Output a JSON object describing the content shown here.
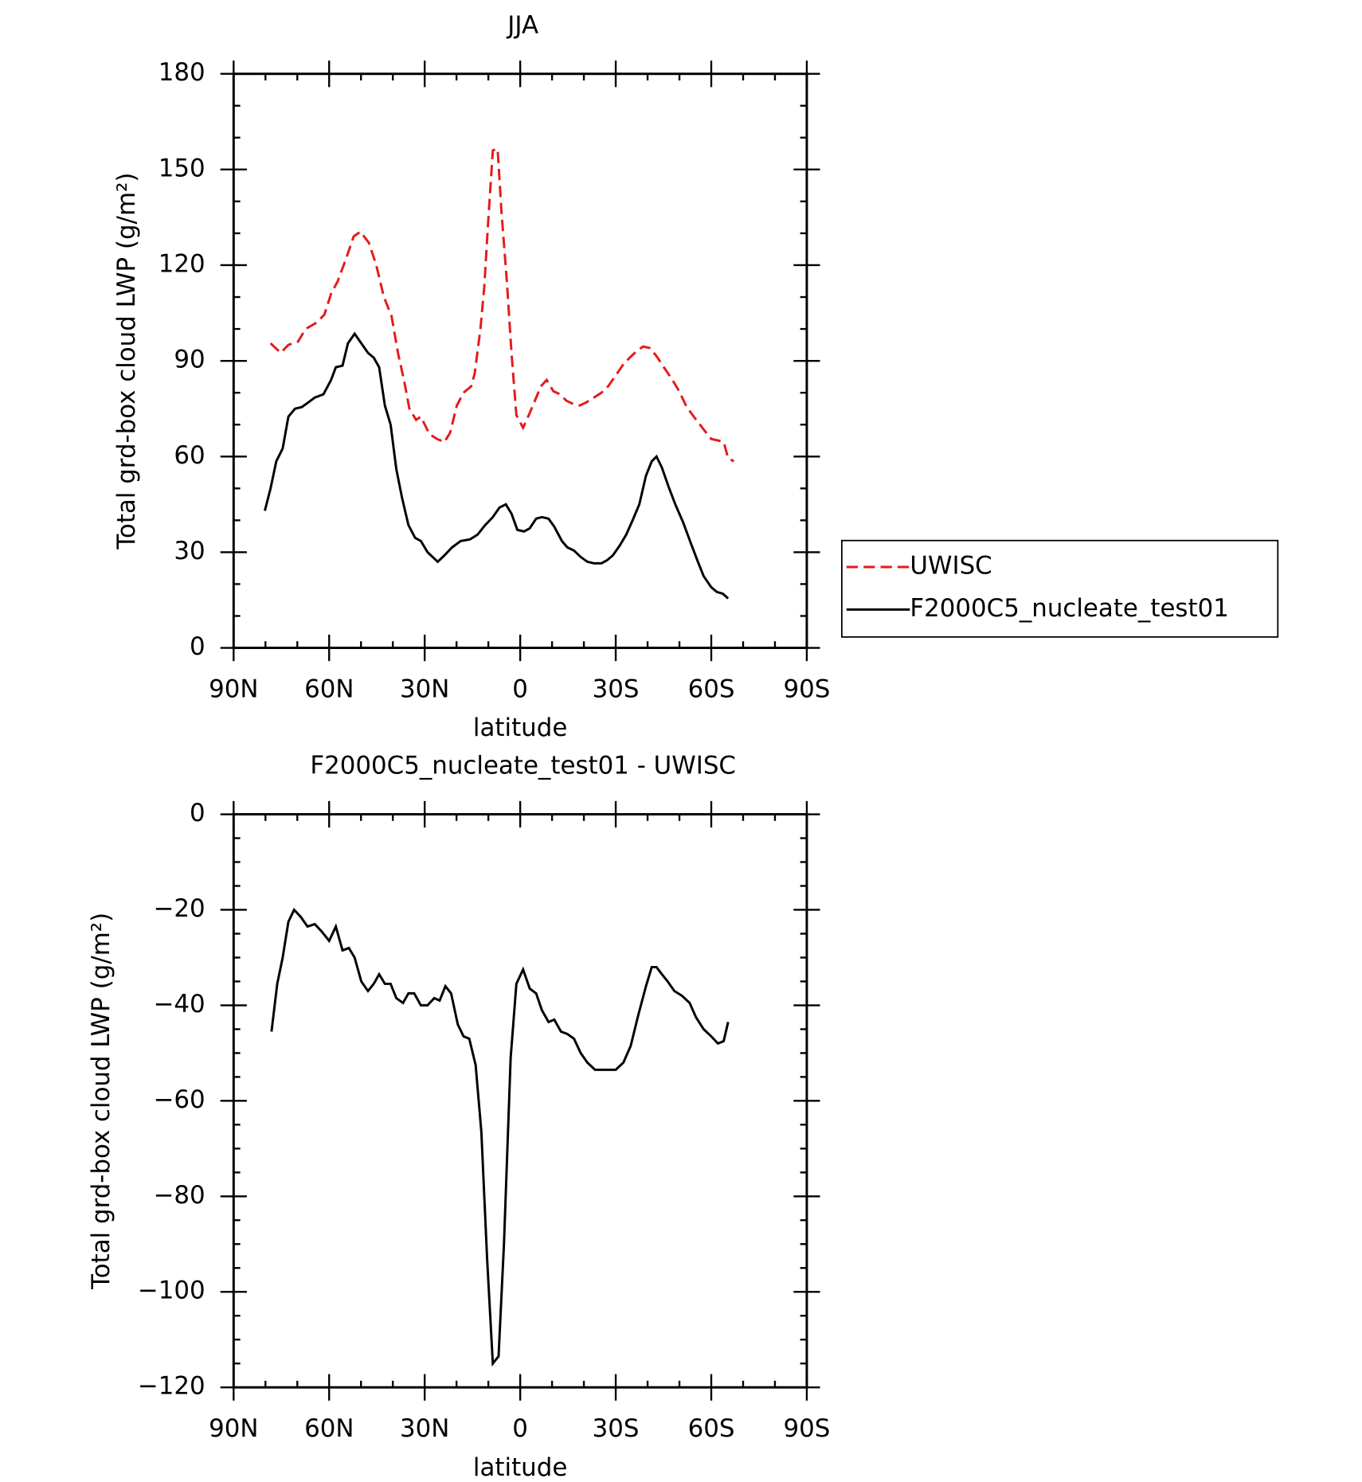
{
  "chart_data": [
    {
      "type": "line",
      "title": "JJA",
      "xlabel": "latitude",
      "ylabel": "Total grd-box cloud LWP (g/m²)",
      "xlim": [
        90,
        -90
      ],
      "xticks": [
        {
          "value": 90,
          "label": "90N"
        },
        {
          "value": 60,
          "label": "60N"
        },
        {
          "value": 30,
          "label": "30N"
        },
        0,
        {
          "value": -30,
          "label": "30S"
        },
        {
          "value": -60,
          "label": "60S"
        },
        {
          "value": -90,
          "label": "90S"
        }
      ],
      "xminorticks": [
        80,
        70,
        50,
        40,
        20,
        10,
        -10,
        -20,
        -40,
        -50,
        -70,
        -80
      ],
      "ylim": [
        0,
        180
      ],
      "yticks": [
        0,
        30,
        60,
        90,
        120,
        150,
        180
      ],
      "yminorticks": [
        10,
        20,
        40,
        50,
        70,
        80,
        100,
        110,
        130,
        140,
        160,
        170
      ],
      "legend": "right",
      "series": [
        {
          "name": "UWISC",
          "color": "#e41a1c",
          "dash": true,
          "x": [
            78.4,
            75.2,
            72.8,
            69.8,
            67.4,
            63.9,
            61.5,
            59.4,
            57.3,
            54.7,
            52.3,
            50.2,
            47.5,
            45.2,
            42.8,
            40.4,
            38.3,
            36.5,
            34.8,
            32.7,
            31.2,
            28.5,
            26.1,
            23.8,
            22,
            19.9,
            17.8,
            15.4,
            14.3,
            12.5,
            11.3,
            10.1,
            8.6,
            7.1,
            5.9,
            4.2,
            2.7,
            1.2,
            -0.9,
            -2.7,
            -4.4,
            -6.5,
            -8.3,
            -10.4,
            -12.5,
            -14.5,
            -16.6,
            -18.7,
            -20.8,
            -23.2,
            -25.5,
            -27.6,
            -29.7,
            -32.1,
            -34.4,
            -36.5,
            -38.6,
            -40.7,
            -42.8,
            -45.1,
            -47.5,
            -49.9,
            -52.3,
            -54.9,
            -57.6,
            -60,
            -62.3,
            -63.9,
            -65.3,
            -67.1
          ],
          "values": [
            95.5,
            92.5,
            95,
            96,
            100,
            102,
            104.5,
            111,
            115,
            122,
            129,
            130.5,
            127,
            120,
            110,
            104,
            92,
            84,
            75,
            71.5,
            72.5,
            67,
            65.5,
            64.5,
            67.5,
            76,
            80,
            82,
            86,
            100,
            113,
            133,
            156,
            156.5,
            137,
            115,
            92,
            73,
            69,
            73,
            77,
            82,
            84,
            80.5,
            79.5,
            77.5,
            76.5,
            76,
            77,
            78.5,
            80,
            82,
            85,
            88.5,
            91,
            93,
            94.5,
            94,
            91.5,
            88,
            84.5,
            80.5,
            75.5,
            72,
            68.5,
            65.5,
            65,
            64.5,
            59.5,
            58.5
          ]
        },
        {
          "name": "F2000C5_nucleate_test01",
          "color": "#000000",
          "dash": false,
          "x": [
            80.2,
            78.4,
            76.6,
            74.6,
            72.8,
            70.7,
            68.6,
            66.5,
            64.5,
            61.8,
            59.4,
            57.9,
            55.8,
            54.1,
            52,
            49.9,
            47.8,
            46,
            44.3,
            42.5,
            40.7,
            38.9,
            37.1,
            35.1,
            33,
            31.2,
            29.1,
            25.9,
            23.8,
            21.4,
            18.7,
            15.8,
            13.4,
            11,
            8.6,
            6.5,
            4.5,
            2.7,
            0.9,
            -1.2,
            -3,
            -5,
            -6.8,
            -8.9,
            -10.7,
            -13.1,
            -14.8,
            -16.9,
            -19,
            -21.1,
            -23.2,
            -25.5,
            -27.3,
            -29.1,
            -31.2,
            -33.3,
            -35.3,
            -37.4,
            -39.5,
            -41.3,
            -42.8,
            -44.5,
            -46.6,
            -48.7,
            -51.1,
            -53.7,
            -55.8,
            -57.6,
            -60,
            -61.8,
            -63.6,
            -65.3
          ],
          "values": [
            43,
            50,
            58.5,
            62.5,
            72.5,
            75,
            75.5,
            77,
            78.5,
            79.5,
            84,
            88,
            88.5,
            95.5,
            98.5,
            95.5,
            92.5,
            91,
            88,
            76,
            70,
            56,
            47,
            38.5,
            34.5,
            33.5,
            30,
            27,
            29,
            31.5,
            33.5,
            34,
            35.5,
            38.5,
            41,
            44,
            45,
            42,
            37,
            36.5,
            37.5,
            40.5,
            41,
            40.5,
            38,
            33.5,
            31.5,
            30.5,
            28.5,
            27,
            26.5,
            26.5,
            27.5,
            29,
            32,
            35.5,
            40,
            45,
            54,
            58.5,
            60,
            56.5,
            50.5,
            45,
            39.5,
            32.5,
            27,
            22.5,
            19,
            17.5,
            17,
            15.5
          ]
        }
      ]
    },
    {
      "type": "line",
      "title": "F2000C5_nucleate_test01 - UWISC",
      "xlabel": "latitude",
      "ylabel": "Total grd-box cloud LWP (g/m²)",
      "xlim": [
        90,
        -90
      ],
      "xticks": [
        {
          "value": 90,
          "label": "90N"
        },
        {
          "value": 60,
          "label": "60N"
        },
        {
          "value": 30,
          "label": "30N"
        },
        0,
        {
          "value": -30,
          "label": "30S"
        },
        {
          "value": -60,
          "label": "60S"
        },
        {
          "value": -90,
          "label": "90S"
        }
      ],
      "xminorticks": [
        80,
        70,
        50,
        40,
        20,
        10,
        -10,
        -20,
        -40,
        -50,
        -70,
        -80
      ],
      "ylim": [
        -120,
        0
      ],
      "yticks": [
        {
          "value": -120,
          "label": "−120"
        },
        {
          "value": -100,
          "label": "−100"
        },
        {
          "value": -80,
          "label": "−80"
        },
        {
          "value": -60,
          "label": "−60"
        },
        {
          "value": -40,
          "label": "−40"
        },
        {
          "value": -20,
          "label": "−20"
        },
        0
      ],
      "yminorticks": [
        -115,
        -110,
        -105,
        -95,
        -90,
        -85,
        -75,
        -70,
        -65,
        -55,
        -50,
        -45,
        -35,
        -30,
        -25,
        -15,
        -10,
        -5
      ],
      "series": [
        {
          "color": "#000000",
          "dash": false,
          "x": [
            78.1,
            76.3,
            74.6,
            72.8,
            71,
            68.9,
            66.8,
            64.5,
            62.4,
            60,
            57.9,
            55.8,
            53.8,
            52,
            49.9,
            47.8,
            46,
            44.3,
            42.5,
            40.7,
            38.9,
            36.8,
            35.1,
            33.3,
            31.2,
            29.1,
            27,
            25.3,
            23.5,
            21.7,
            19.6,
            17.8,
            16,
            14,
            12.2,
            10.4,
            8.6,
            6.8,
            5.1,
            3,
            1.2,
            -0.9,
            -3,
            -5,
            -6.8,
            -8.9,
            -10.7,
            -12.8,
            -14.8,
            -16.9,
            -19,
            -21.1,
            -23.5,
            -25.5,
            -27.9,
            -30,
            -32.4,
            -34.7,
            -37.1,
            -39.5,
            -41.3,
            -42.8,
            -44.5,
            -46.3,
            -48.4,
            -50.8,
            -53.2,
            -55.2,
            -57.6,
            -60,
            -62.1,
            -63.9,
            -65.3
          ],
          "values": [
            -45.5,
            -35.5,
            -30,
            -22.5,
            -20,
            -21.5,
            -23.5,
            -23,
            -24.5,
            -26.5,
            -23.5,
            -28.5,
            -28,
            -30,
            -35,
            -37,
            -35.5,
            -33.5,
            -35.5,
            -35.5,
            -38.5,
            -39.5,
            -37.5,
            -37.5,
            -40,
            -40,
            -38.5,
            -39,
            -36,
            -37.5,
            -44,
            -46.5,
            -47,
            -52.5,
            -66.5,
            -93,
            -115,
            -113.5,
            -90,
            -51,
            -35.5,
            -32.5,
            -36.5,
            -37.5,
            -41,
            -43.5,
            -43,
            -45.5,
            -46,
            -47,
            -50,
            -52,
            -53.5,
            -53.5,
            -53.5,
            -53.5,
            -52,
            -48.5,
            -42,
            -36,
            -32,
            -32,
            -33.5,
            -35,
            -37,
            -38,
            -39.5,
            -42.5,
            -45,
            -46.5,
            -48,
            -47.5,
            -43.5
          ]
        }
      ]
    }
  ]
}
